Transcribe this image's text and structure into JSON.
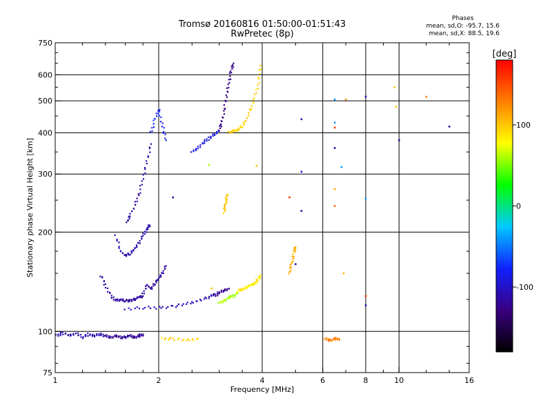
{
  "title_line1": "Tromsø 20160816 01:50:00-01:51:43",
  "title_line2": "RwPretec (8p)",
  "phases": {
    "title": "Phases",
    "line1": "mean, sd,O: -95.7, 15.6",
    "line2": "mean, sd,X:  88.5, 19.6"
  },
  "colorbar": {
    "label": "[deg]",
    "ticks": [
      "100",
      "0",
      "-100"
    ],
    "tick_values": [
      100,
      0,
      -100
    ],
    "range": [
      -180,
      180
    ],
    "colors": [
      "#000000",
      "#3a0080",
      "#1020ff",
      "#00c8ff",
      "#00ff00",
      "#ffff00",
      "#ff8000",
      "#ff0000"
    ]
  },
  "chart_data": {
    "type": "scatter",
    "title": "Tromsø 20160816 01:50:00-01:51:43",
    "subtitle": "RwPretec (8p)",
    "xlabel": "Frequency [MHz]",
    "ylabel": "Stationary phase Virtual Height [km]",
    "xscale": "log2",
    "yscale": "log",
    "xlim": [
      1,
      16
    ],
    "ylim": [
      75,
      750
    ],
    "xticks": [
      1,
      2,
      4,
      6,
      8,
      10,
      16
    ],
    "xtick_labels": [
      "1",
      "2",
      "4",
      "6",
      "8",
      "10",
      "16"
    ],
    "yticks": [
      75,
      100,
      200,
      300,
      400,
      500,
      600,
      750
    ],
    "ytick_labels": [
      "75",
      "100",
      "200",
      "300",
      "400",
      "500",
      "600",
      "750"
    ],
    "grid": true,
    "color_variable": "phase [deg]",
    "segments": [
      {
        "x": [
          1.01,
          1.05,
          1.1,
          1.15,
          1.2,
          1.25,
          1.3,
          1.35,
          1.4
        ],
        "y": [
          97,
          99,
          97,
          99,
          96,
          98,
          97,
          98,
          97
        ],
        "phase": -110
      },
      {
        "x": [
          1.4,
          1.45,
          1.5,
          1.55,
          1.6,
          1.65,
          1.7,
          1.75,
          1.8
        ],
        "y": [
          97,
          96,
          97,
          96,
          96,
          97,
          96,
          97,
          98
        ],
        "phase": -120
      },
      {
        "x": [
          1.36,
          1.4,
          1.45,
          1.5,
          1.55,
          1.6,
          1.65,
          1.7,
          1.75,
          1.8
        ],
        "y": [
          148,
          138,
          128,
          124,
          125,
          124,
          124,
          125,
          127,
          128
        ],
        "phase": -115
      },
      {
        "x": [
          1.8,
          1.85,
          1.9,
          1.95,
          2.0,
          2.05,
          2.1
        ],
        "y": [
          130,
          138,
          135,
          140,
          145,
          150,
          158
        ],
        "phase": -115
      },
      {
        "x": [
          1.6,
          1.8,
          2.0,
          2.2,
          2.4,
          2.6,
          2.8,
          2.9
        ],
        "y": [
          117,
          118,
          118,
          119,
          121,
          124,
          127,
          130
        ],
        "phase": -105
      },
      {
        "x": [
          2.9,
          3.0,
          3.1,
          3.2
        ],
        "y": [
          128,
          131,
          133,
          135
        ],
        "phase": -120
      },
      {
        "x": [
          3.0,
          3.1,
          3.2,
          3.3,
          3.4
        ],
        "y": [
          122,
          124,
          127,
          128,
          131
        ],
        "phase": 60
      },
      {
        "x": [
          3.4,
          3.5,
          3.6,
          3.7,
          3.8,
          3.9,
          3.95
        ],
        "y": [
          133,
          134,
          136,
          138,
          140,
          144,
          148
        ],
        "phase": 85
      },
      {
        "x": [
          1.5,
          1.55,
          1.6,
          1.65,
          1.7,
          1.75,
          1.8,
          1.85,
          1.88
        ],
        "y": [
          195,
          175,
          170,
          172,
          178,
          185,
          195,
          205,
          210
        ],
        "phase": -110
      },
      {
        "x": [
          1.62,
          1.65,
          1.7,
          1.75,
          1.8,
          1.85,
          1.9
        ],
        "y": [
          215,
          225,
          240,
          260,
          290,
          330,
          370
        ],
        "phase": -115
      },
      {
        "x": [
          1.9,
          1.95,
          2.0,
          2.05,
          2.1
        ],
        "y": [
          400,
          440,
          470,
          420,
          380
        ],
        "phase": -80
      },
      {
        "x": [
          2.5,
          2.6,
          2.7,
          2.8,
          2.9,
          3.0
        ],
        "y": [
          350,
          360,
          375,
          385,
          395,
          405
        ],
        "phase": -90
      },
      {
        "x": [
          3.0,
          3.05,
          3.1,
          3.15,
          3.2,
          3.25,
          3.3
        ],
        "y": [
          410,
          430,
          470,
          520,
          570,
          620,
          650
        ],
        "phase": -125
      },
      {
        "x": [
          3.2,
          3.3,
          3.4,
          3.5,
          3.6,
          3.7,
          3.8,
          3.9,
          3.95
        ],
        "y": [
          402,
          404,
          410,
          420,
          440,
          470,
          510,
          570,
          640
        ],
        "phase": 95
      },
      {
        "x": [
          4.8,
          4.85,
          4.9,
          4.95,
          5.0
        ],
        "y": [
          150,
          158,
          165,
          175,
          180
        ],
        "phase": 110
      },
      {
        "x": [
          2.05,
          2.2,
          2.4,
          2.6
        ],
        "y": [
          95,
          95,
          94,
          95
        ],
        "phase": 95
      },
      {
        "x": [
          6.1,
          6.3,
          6.5,
          6.7
        ],
        "y": [
          95,
          94,
          95,
          95
        ],
        "phase": 130
      },
      {
        "x": [
          3.1,
          3.12,
          3.14,
          3.16
        ],
        "y": [
          230,
          240,
          250,
          260
        ],
        "phase": 100
      }
    ],
    "scattered_points": [
      {
        "x": 5.2,
        "y": 440,
        "phase": -110
      },
      {
        "x": 5.2,
        "y": 305,
        "phase": -100
      },
      {
        "x": 5.2,
        "y": 232,
        "phase": -110
      },
      {
        "x": 6.5,
        "y": 505,
        "phase": -40
      },
      {
        "x": 6.5,
        "y": 430,
        "phase": -40
      },
      {
        "x": 6.5,
        "y": 415,
        "phase": 160
      },
      {
        "x": 6.5,
        "y": 360,
        "phase": -120
      },
      {
        "x": 6.5,
        "y": 270,
        "phase": 110
      },
      {
        "x": 6.5,
        "y": 240,
        "phase": 140
      },
      {
        "x": 6.8,
        "y": 315,
        "phase": -40
      },
      {
        "x": 7.0,
        "y": 505,
        "phase": 120
      },
      {
        "x": 8.0,
        "y": 515,
        "phase": -100
      },
      {
        "x": 8.0,
        "y": 253,
        "phase": -40
      },
      {
        "x": 8.0,
        "y": 128,
        "phase": 160
      },
      {
        "x": 8.0,
        "y": 120,
        "phase": -100
      },
      {
        "x": 9.7,
        "y": 550,
        "phase": 100
      },
      {
        "x": 9.8,
        "y": 480,
        "phase": 100
      },
      {
        "x": 10.0,
        "y": 380,
        "phase": -120
      },
      {
        "x": 12.0,
        "y": 515,
        "phase": 130
      },
      {
        "x": 14.0,
        "y": 418,
        "phase": -120
      },
      {
        "x": 4.8,
        "y": 255,
        "phase": 160
      },
      {
        "x": 2.2,
        "y": 255,
        "phase": -120
      },
      {
        "x": 2.8,
        "y": 320,
        "phase": 60
      },
      {
        "x": 3.85,
        "y": 318,
        "phase": 100
      },
      {
        "x": 2.85,
        "y": 135,
        "phase": 100
      },
      {
        "x": 6.9,
        "y": 150,
        "phase": 110
      },
      {
        "x": 5.0,
        "y": 160,
        "phase": -110
      }
    ]
  }
}
